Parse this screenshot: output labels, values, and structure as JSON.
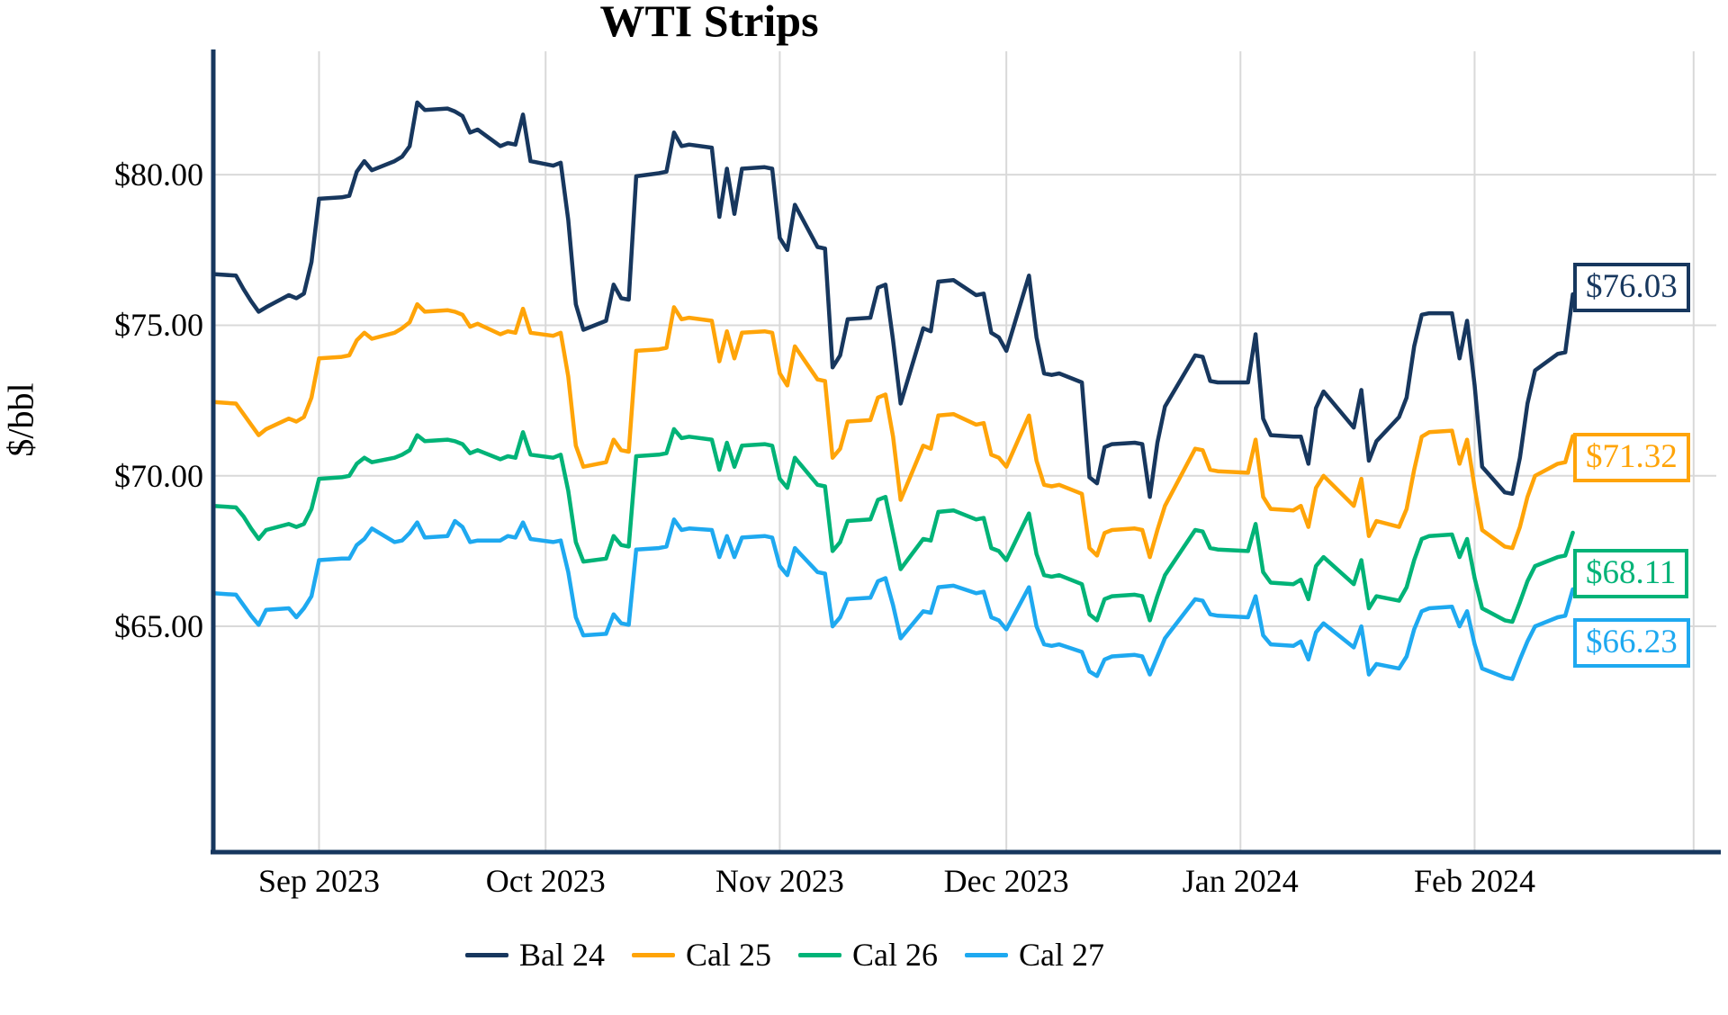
{
  "title": "WTI Strips",
  "chart_data": {
    "type": "line",
    "title": "WTI Strips",
    "xlabel": "",
    "ylabel": "$/bbl",
    "grid": true,
    "legend_position": "bottom",
    "ylim": [
      57.5,
      84.1
    ],
    "x_range": [
      "2023-08-18",
      "2024-03-04"
    ],
    "y_ticks": [
      {
        "value": 80,
        "label": "$80.00"
      },
      {
        "value": 75,
        "label": "$75.00"
      },
      {
        "value": 70,
        "label": "$70.00"
      },
      {
        "value": 65,
        "label": "$65.00"
      }
    ],
    "x_ticks": [
      {
        "date": "2023-09-01",
        "label": "Sep 2023"
      },
      {
        "date": "2023-10-01",
        "label": "Oct 2023"
      },
      {
        "date": "2023-11-01",
        "label": "Nov 2023"
      },
      {
        "date": "2023-12-01",
        "label": "Dec 2023"
      },
      {
        "date": "2024-01-01",
        "label": "Jan 2024"
      },
      {
        "date": "2024-02-01",
        "label": "Feb 2024"
      },
      {
        "date": "2024-03-01",
        "label": ""
      }
    ],
    "dates": [
      "2023-08-18",
      "2023-08-21",
      "2023-08-22",
      "2023-08-23",
      "2023-08-24",
      "2023-08-25",
      "2023-08-28",
      "2023-08-29",
      "2023-08-30",
      "2023-08-31",
      "2023-09-01",
      "2023-09-04",
      "2023-09-05",
      "2023-09-06",
      "2023-09-07",
      "2023-09-08",
      "2023-09-11",
      "2023-09-12",
      "2023-09-13",
      "2023-09-14",
      "2023-09-15",
      "2023-09-18",
      "2023-09-19",
      "2023-09-20",
      "2023-09-21",
      "2023-09-22",
      "2023-09-25",
      "2023-09-26",
      "2023-09-27",
      "2023-09-28",
      "2023-09-29",
      "2023-10-02",
      "2023-10-03",
      "2023-10-04",
      "2023-10-05",
      "2023-10-06",
      "2023-10-09",
      "2023-10-10",
      "2023-10-11",
      "2023-10-12",
      "2023-10-13",
      "2023-10-16",
      "2023-10-17",
      "2023-10-18",
      "2023-10-19",
      "2023-10-20",
      "2023-10-23",
      "2023-10-24",
      "2023-10-25",
      "2023-10-26",
      "2023-10-27",
      "2023-10-30",
      "2023-10-31",
      "2023-11-01",
      "2023-11-02",
      "2023-11-03",
      "2023-11-06",
      "2023-11-07",
      "2023-11-08",
      "2023-11-09",
      "2023-11-10",
      "2023-11-13",
      "2023-11-14",
      "2023-11-15",
      "2023-11-16",
      "2023-11-17",
      "2023-11-20",
      "2023-11-21",
      "2023-11-22",
      "2023-11-24",
      "2023-11-27",
      "2023-11-28",
      "2023-11-29",
      "2023-11-30",
      "2023-12-01",
      "2023-12-04",
      "2023-12-05",
      "2023-12-06",
      "2023-12-07",
      "2023-12-08",
      "2023-12-11",
      "2023-12-12",
      "2023-12-13",
      "2023-12-14",
      "2023-12-15",
      "2023-12-18",
      "2023-12-19",
      "2023-12-20",
      "2023-12-21",
      "2023-12-22",
      "2023-12-26",
      "2023-12-27",
      "2023-12-28",
      "2023-12-29",
      "2024-01-02",
      "2024-01-03",
      "2024-01-04",
      "2024-01-05",
      "2024-01-08",
      "2024-01-09",
      "2024-01-10",
      "2024-01-11",
      "2024-01-12",
      "2024-01-16",
      "2024-01-17",
      "2024-01-18",
      "2024-01-19",
      "2024-01-22",
      "2024-01-23",
      "2024-01-24",
      "2024-01-25",
      "2024-01-26",
      "2024-01-29",
      "2024-01-30",
      "2024-01-31",
      "2024-02-01",
      "2024-02-02",
      "2024-02-05",
      "2024-02-06",
      "2024-02-07",
      "2024-02-08",
      "2024-02-09",
      "2024-02-12",
      "2024-02-13",
      "2024-02-14"
    ],
    "series": [
      {
        "name": "Bal 24",
        "color": "#17375e",
        "end_label": "$76.03",
        "end_value": 76.03,
        "values": [
          76.7,
          76.65,
          76.2,
          75.8,
          75.45,
          75.6,
          76.0,
          75.9,
          76.05,
          77.1,
          79.2,
          79.25,
          79.3,
          80.1,
          80.45,
          80.15,
          80.45,
          80.6,
          80.95,
          82.4,
          82.15,
          82.2,
          82.1,
          81.95,
          81.4,
          81.5,
          80.95,
          81.05,
          81.0,
          82.0,
          80.45,
          80.3,
          80.4,
          78.5,
          75.7,
          74.85,
          75.15,
          76.35,
          75.9,
          75.85,
          79.95,
          80.05,
          80.1,
          81.4,
          80.95,
          81.0,
          80.9,
          78.6,
          80.2,
          78.7,
          80.2,
          80.25,
          80.2,
          77.9,
          77.5,
          79.0,
          77.6,
          77.55,
          73.6,
          74.0,
          75.2,
          75.25,
          76.25,
          76.35,
          74.5,
          72.4,
          74.9,
          74.8,
          76.45,
          76.5,
          76.0,
          76.05,
          74.75,
          74.6,
          74.15,
          76.65,
          74.6,
          73.4,
          73.35,
          73.4,
          73.1,
          69.95,
          69.75,
          70.95,
          71.05,
          71.1,
          71.05,
          69.3,
          71.1,
          72.3,
          74.0,
          73.95,
          73.15,
          73.1,
          73.1,
          74.7,
          71.9,
          71.35,
          71.3,
          71.3,
          70.4,
          72.25,
          72.8,
          71.6,
          72.85,
          70.5,
          71.15,
          71.95,
          72.6,
          74.3,
          75.35,
          75.4,
          75.4,
          73.9,
          75.15,
          73.0,
          70.3,
          69.45,
          69.4,
          70.6,
          72.4,
          73.5,
          74.05,
          74.1,
          76.03
        ]
      },
      {
        "name": "Cal 25",
        "color": "#ffa408",
        "end_label": "$71.32",
        "end_value": 71.32,
        "values": [
          72.45,
          72.4,
          72.05,
          71.7,
          71.35,
          71.55,
          71.9,
          71.8,
          71.95,
          72.6,
          73.9,
          73.95,
          74.0,
          74.5,
          74.75,
          74.55,
          74.75,
          74.9,
          75.1,
          75.7,
          75.45,
          75.5,
          75.45,
          75.35,
          74.95,
          75.05,
          74.7,
          74.8,
          74.75,
          75.55,
          74.75,
          74.65,
          74.75,
          73.3,
          71.0,
          70.3,
          70.45,
          71.2,
          70.85,
          70.8,
          74.15,
          74.2,
          74.25,
          75.6,
          75.2,
          75.25,
          75.15,
          73.8,
          74.8,
          73.9,
          74.75,
          74.8,
          74.75,
          73.4,
          73.0,
          74.3,
          73.2,
          73.15,
          70.6,
          70.9,
          71.8,
          71.85,
          72.6,
          72.7,
          71.3,
          69.2,
          71.0,
          70.9,
          72.0,
          72.05,
          71.7,
          71.75,
          70.7,
          70.6,
          70.3,
          72.0,
          70.5,
          69.7,
          69.65,
          69.7,
          69.4,
          67.6,
          67.35,
          68.1,
          68.2,
          68.25,
          68.2,
          67.3,
          68.2,
          69.0,
          70.9,
          70.85,
          70.2,
          70.15,
          70.1,
          71.2,
          69.3,
          68.9,
          68.85,
          69.0,
          68.3,
          69.6,
          70.0,
          69.0,
          69.9,
          68.0,
          68.5,
          68.3,
          68.9,
          70.2,
          71.3,
          71.45,
          71.5,
          70.4,
          71.2,
          69.6,
          68.2,
          67.65,
          67.6,
          68.3,
          69.3,
          70.0,
          70.4,
          70.45,
          71.32
        ]
      },
      {
        "name": "Cal 26",
        "color": "#00b377",
        "end_label": "$68.11",
        "end_value": 68.11,
        "values": [
          69.0,
          68.95,
          68.65,
          68.25,
          67.9,
          68.2,
          68.4,
          68.3,
          68.4,
          68.9,
          69.9,
          69.95,
          70.0,
          70.4,
          70.6,
          70.45,
          70.6,
          70.7,
          70.85,
          71.35,
          71.15,
          71.2,
          71.15,
          71.05,
          70.75,
          70.85,
          70.55,
          70.65,
          70.6,
          71.45,
          70.7,
          70.6,
          70.7,
          69.5,
          67.8,
          67.15,
          67.25,
          68.0,
          67.7,
          67.65,
          70.65,
          70.7,
          70.75,
          71.55,
          71.25,
          71.3,
          71.2,
          70.2,
          71.1,
          70.3,
          71.0,
          71.05,
          71.0,
          69.9,
          69.6,
          70.6,
          69.7,
          69.65,
          67.5,
          67.8,
          68.5,
          68.55,
          69.2,
          69.3,
          68.1,
          66.9,
          67.9,
          67.85,
          68.8,
          68.85,
          68.55,
          68.6,
          67.6,
          67.5,
          67.2,
          68.75,
          67.4,
          66.7,
          66.65,
          66.7,
          66.4,
          65.4,
          65.2,
          65.9,
          66.0,
          66.05,
          66.0,
          65.2,
          66.0,
          66.7,
          68.2,
          68.15,
          67.6,
          67.55,
          67.5,
          68.4,
          66.8,
          66.45,
          66.4,
          66.55,
          65.9,
          67.0,
          67.3,
          66.4,
          67.2,
          65.6,
          66.0,
          65.85,
          66.3,
          67.2,
          67.9,
          68.0,
          68.05,
          67.3,
          67.9,
          66.6,
          65.6,
          65.2,
          65.15,
          65.8,
          66.5,
          67.0,
          67.3,
          67.35,
          68.11
        ]
      },
      {
        "name": "Cal 27",
        "color": "#1ea9f0",
        "end_label": "$66.23",
        "end_value": 66.23,
        "values": [
          66.1,
          66.05,
          65.7,
          65.35,
          65.05,
          65.55,
          65.6,
          65.3,
          65.6,
          66.0,
          67.2,
          67.25,
          67.25,
          67.7,
          67.9,
          68.25,
          67.8,
          67.85,
          68.1,
          68.45,
          67.95,
          68.0,
          68.5,
          68.3,
          67.8,
          67.85,
          67.85,
          68.0,
          67.95,
          68.45,
          67.9,
          67.8,
          67.85,
          66.8,
          65.3,
          64.7,
          64.75,
          65.4,
          65.1,
          65.05,
          67.55,
          67.6,
          67.65,
          68.55,
          68.2,
          68.25,
          68.2,
          67.3,
          68.0,
          67.3,
          67.95,
          68.0,
          67.95,
          67.0,
          66.7,
          67.6,
          66.8,
          66.75,
          65.0,
          65.3,
          65.9,
          65.95,
          66.5,
          66.6,
          65.7,
          64.6,
          65.5,
          65.45,
          66.3,
          66.35,
          66.1,
          66.15,
          65.3,
          65.2,
          64.9,
          66.3,
          65.0,
          64.4,
          64.35,
          64.4,
          64.15,
          63.5,
          63.35,
          63.9,
          64.0,
          64.05,
          64.0,
          63.4,
          64.0,
          64.6,
          65.9,
          65.85,
          65.4,
          65.35,
          65.3,
          66.0,
          64.7,
          64.4,
          64.35,
          64.5,
          63.9,
          64.8,
          65.1,
          64.3,
          65.0,
          63.4,
          63.75,
          63.6,
          64.0,
          64.9,
          65.5,
          65.6,
          65.65,
          65.0,
          65.5,
          64.4,
          63.6,
          63.3,
          63.25,
          63.9,
          64.5,
          65.0,
          65.3,
          65.35,
          66.23
        ]
      }
    ]
  },
  "legend": {
    "items": [
      {
        "label": "Bal 24"
      },
      {
        "label": "Cal 25"
      },
      {
        "label": "Cal 26"
      },
      {
        "label": "Cal 27"
      }
    ]
  },
  "end_labels": [
    {
      "text": "$76.03"
    },
    {
      "text": "$71.32"
    },
    {
      "text": "$68.11"
    },
    {
      "text": "$66.23"
    }
  ],
  "colors": {
    "axis": "#17375e",
    "gridline": "#d9d9d9",
    "background": "#ffffff"
  }
}
